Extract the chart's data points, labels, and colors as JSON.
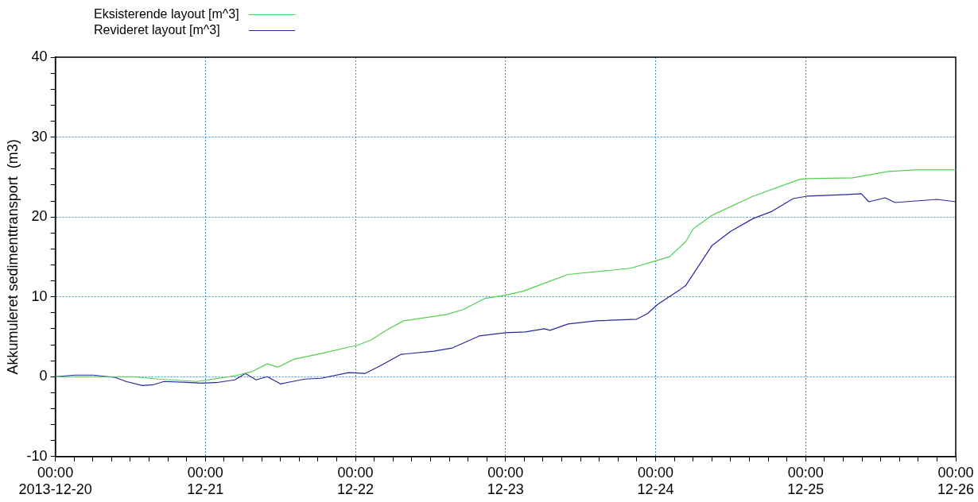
{
  "chart_data": {
    "type": "line",
    "ylabel": "Akkumuleret sedimenttransport  (m3)",
    "xlim": [
      "2013-12-20T00:00",
      "2013-12-26T00:00"
    ],
    "ylim": [
      -10,
      40
    ],
    "xticks": [
      {
        "value": "2013-12-20T00:00",
        "label": "00:00\n2013-12-20"
      },
      {
        "value": "2013-12-20T03:00",
        "label": null
      },
      {
        "value": "2013-12-20T06:00",
        "label": null
      },
      {
        "value": "2013-12-20T09:00",
        "label": null
      },
      {
        "value": "2013-12-20T12:00",
        "label": null
      },
      {
        "value": "2013-12-20T15:00",
        "label": null
      },
      {
        "value": "2013-12-20T18:00",
        "label": null
      },
      {
        "value": "2013-12-20T21:00",
        "label": null
      },
      {
        "value": "2013-12-21T00:00",
        "label": "00:00\n12-21"
      },
      {
        "value": "2013-12-21T03:00",
        "label": null
      },
      {
        "value": "2013-12-21T06:00",
        "label": null
      },
      {
        "value": "2013-12-21T09:00",
        "label": null
      },
      {
        "value": "2013-12-21T12:00",
        "label": null
      },
      {
        "value": "2013-12-21T15:00",
        "label": null
      },
      {
        "value": "2013-12-21T18:00",
        "label": null
      },
      {
        "value": "2013-12-21T21:00",
        "label": null
      },
      {
        "value": "2013-12-22T00:00",
        "label": "00:00\n12-22"
      },
      {
        "value": "2013-12-22T03:00",
        "label": null
      },
      {
        "value": "2013-12-22T06:00",
        "label": null
      },
      {
        "value": "2013-12-22T09:00",
        "label": null
      },
      {
        "value": "2013-12-22T12:00",
        "label": null
      },
      {
        "value": "2013-12-22T15:00",
        "label": null
      },
      {
        "value": "2013-12-22T18:00",
        "label": null
      },
      {
        "value": "2013-12-22T21:00",
        "label": null
      },
      {
        "value": "2013-12-23T00:00",
        "label": "00:00\n12-23"
      },
      {
        "value": "2013-12-23T03:00",
        "label": null
      },
      {
        "value": "2013-12-23T06:00",
        "label": null
      },
      {
        "value": "2013-12-23T09:00",
        "label": null
      },
      {
        "value": "2013-12-23T12:00",
        "label": null
      },
      {
        "value": "2013-12-23T15:00",
        "label": null
      },
      {
        "value": "2013-12-23T18:00",
        "label": null
      },
      {
        "value": "2013-12-23T21:00",
        "label": null
      },
      {
        "value": "2013-12-24T00:00",
        "label": "00:00\n12-24"
      },
      {
        "value": "2013-12-24T03:00",
        "label": null
      },
      {
        "value": "2013-12-24T06:00",
        "label": null
      },
      {
        "value": "2013-12-24T09:00",
        "label": null
      },
      {
        "value": "2013-12-24T12:00",
        "label": null
      },
      {
        "value": "2013-12-24T15:00",
        "label": null
      },
      {
        "value": "2013-12-24T18:00",
        "label": null
      },
      {
        "value": "2013-12-24T21:00",
        "label": null
      },
      {
        "value": "2013-12-25T00:00",
        "label": "00:00\n12-25"
      },
      {
        "value": "2013-12-25T03:00",
        "label": null
      },
      {
        "value": "2013-12-25T06:00",
        "label": null
      },
      {
        "value": "2013-12-25T09:00",
        "label": null
      },
      {
        "value": "2013-12-25T12:00",
        "label": null
      },
      {
        "value": "2013-12-25T15:00",
        "label": null
      },
      {
        "value": "2013-12-25T18:00",
        "label": null
      },
      {
        "value": "2013-12-25T21:00",
        "label": null
      },
      {
        "value": "2013-12-26T00:00",
        "label": "00:00\n12-26"
      }
    ],
    "yticks": [
      -10,
      {
        "value": -8,
        "label": null
      },
      {
        "value": -6,
        "label": null
      },
      {
        "value": -4,
        "label": null
      },
      {
        "value": -2,
        "label": null
      },
      0,
      {
        "value": 2,
        "label": null
      },
      {
        "value": 4,
        "label": null
      },
      {
        "value": 6,
        "label": null
      },
      {
        "value": 8,
        "label": null
      },
      10,
      {
        "value": 12,
        "label": null
      },
      {
        "value": 14,
        "label": null
      },
      {
        "value": 16,
        "label": null
      },
      {
        "value": 18,
        "label": null
      },
      20,
      {
        "value": 22,
        "label": null
      },
      {
        "value": 24,
        "label": null
      },
      {
        "value": 26,
        "label": null
      },
      {
        "value": 28,
        "label": null
      },
      30,
      {
        "value": 32,
        "label": null
      },
      {
        "value": 34,
        "label": null
      },
      {
        "value": 36,
        "label": null
      },
      {
        "value": 38,
        "label": null
      },
      40
    ],
    "grid": true,
    "legend": "top left",
    "marker": "none",
    "line_style": "solid",
    "series": [
      {
        "name": "Eksisterende layout [m^3]",
        "color": "#50d050",
        "x": [
          "2013-12-20T00:00",
          "2013-12-20T12:12",
          "2013-12-20T16:30",
          "2013-12-20T22:36",
          "2013-12-21T04:42",
          "2013-12-21T07:18",
          "2013-12-21T09:54",
          "2013-12-21T11:36",
          "2013-12-21T14:12",
          "2013-12-21T18:30",
          "2013-12-21T22:54",
          "2013-12-22T00:12",
          "2013-12-22T02:30",
          "2013-12-22T05:06",
          "2013-12-22T07:42",
          "2013-12-22T14:36",
          "2013-12-22T17:12",
          "2013-12-22T20:42",
          "2013-12-23T00:00",
          "2013-12-23T02:48",
          "2013-12-23T06:12",
          "2013-12-23T10:00",
          "2013-12-23T16:36",
          "2013-12-23T20:06",
          "2013-12-24T00:00",
          "2013-12-24T02:12",
          "2013-12-24T04:48",
          "2013-12-24T06:00",
          "2013-12-24T09:00",
          "2013-12-24T15:36",
          "2013-12-24T23:00",
          "2013-12-25T00:12",
          "2013-12-25T07:30",
          "2013-12-25T13:12",
          "2013-12-25T17:30",
          "2013-12-26T00:00"
        ],
        "values": [
          0,
          0,
          -0.3,
          -0.6,
          0.1,
          0.6,
          1.6,
          1.2,
          2.2,
          2.9,
          3.7,
          3.9,
          4.6,
          5.9,
          7.0,
          7.8,
          8.4,
          9.8,
          10.2,
          10.7,
          11.7,
          12.8,
          13.3,
          13.6,
          14.5,
          15.0,
          16.9,
          18.5,
          20.2,
          22.6,
          24.7,
          24.8,
          24.9,
          25.7,
          25.9,
          25.9
        ]
      },
      {
        "name": "Revideret layout [m^3]",
        "color": "#2828a0",
        "x": [
          "2013-12-20T00:00",
          "2013-12-20T03:06",
          "2013-12-20T06:06",
          "2013-12-20T09:36",
          "2013-12-20T11:18",
          "2013-12-20T13:54",
          "2013-12-20T15:42",
          "2013-12-20T17:24",
          "2013-12-20T20:54",
          "2013-12-20T23:30",
          "2013-12-21T02:06",
          "2013-12-21T04:42",
          "2013-12-21T06:24",
          "2013-12-21T08:06",
          "2013-12-21T09:54",
          "2013-12-21T12:00",
          "2013-12-21T13:18",
          "2013-12-21T15:54",
          "2013-12-21T18:30",
          "2013-12-21T22:54",
          "2013-12-22T01:30",
          "2013-12-22T03:48",
          "2013-12-22T07:18",
          "2013-12-22T12:30",
          "2013-12-22T15:30",
          "2013-12-22T19:48",
          "2013-12-23T00:00",
          "2013-12-23T03:12",
          "2013-12-23T06:12",
          "2013-12-23T07:06",
          "2013-12-23T10:00",
          "2013-12-23T14:30",
          "2013-12-23T21:00",
          "2013-12-23T22:42",
          "2013-12-24T00:24",
          "2013-12-24T03:54",
          "2013-12-24T04:48",
          "2013-12-24T09:00",
          "2013-12-24T12:00",
          "2013-12-24T15:36",
          "2013-12-24T18:36",
          "2013-12-24T22:00",
          "2013-12-25T00:12",
          "2013-12-25T06:42",
          "2013-12-25T08:54",
          "2013-12-25T10:06",
          "2013-12-25T12:42",
          "2013-12-25T14:18",
          "2013-12-25T21:00",
          "2013-12-26T00:00"
        ],
        "values": [
          0,
          0.2,
          0.2,
          -0.1,
          -0.6,
          -1.1,
          -1.0,
          -0.6,
          -0.7,
          -0.8,
          -0.7,
          -0.4,
          0.4,
          -0.4,
          0,
          -0.9,
          -0.7,
          -0.3,
          -0.2,
          0.5,
          0.4,
          1.3,
          2.8,
          3.2,
          3.6,
          5.1,
          5.5,
          5.6,
          6.0,
          5.8,
          6.6,
          7.0,
          7.2,
          7.9,
          9.1,
          10.9,
          11.4,
          16.4,
          18.2,
          19.8,
          20.7,
          22.3,
          22.6,
          22.8,
          22.9,
          21.9,
          22.4,
          21.8,
          22.2,
          21.9
        ]
      }
    ]
  }
}
